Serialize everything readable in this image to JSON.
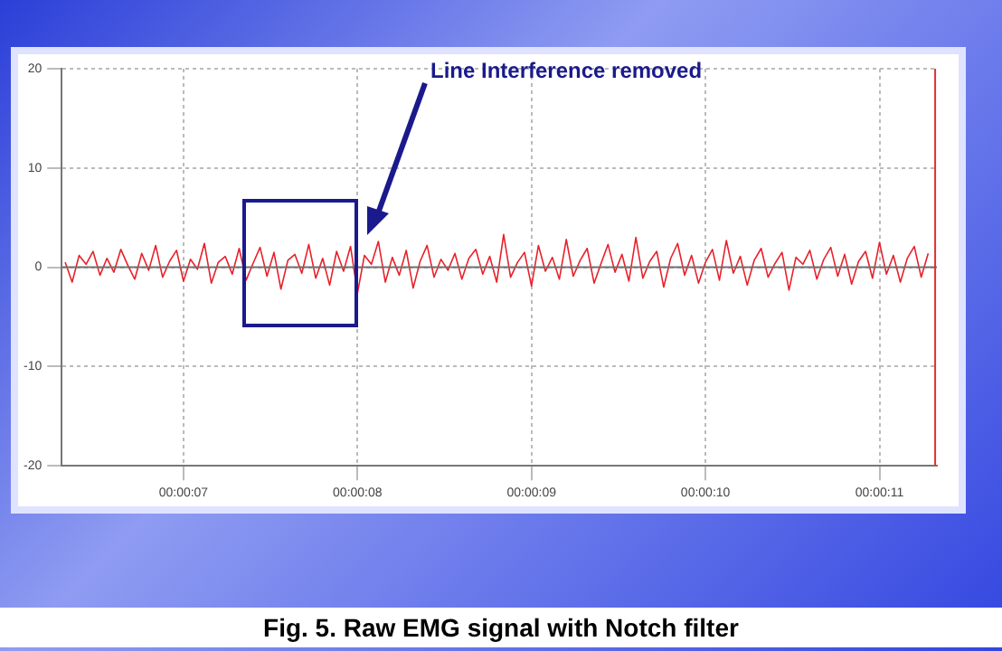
{
  "chart_data": {
    "type": "line",
    "title": "Fig. 5. Raw EMG signal with Notch filter",
    "annotations": [
      "Line Interference removed"
    ],
    "xlim": [
      6.3,
      11.33
    ],
    "xticks": [
      {
        "value": 7,
        "label": "00:00:07"
      },
      {
        "value": 8,
        "label": "00:00:08"
      },
      {
        "value": 9,
        "label": "00:00:09"
      },
      {
        "value": 10,
        "label": "00:00:10"
      },
      {
        "value": 11,
        "label": "00:00:11"
      }
    ],
    "ylim": [
      -20,
      20
    ],
    "yticks": [
      -20,
      -10,
      0,
      10,
      20
    ],
    "grid": true,
    "marker": "none",
    "line_style": "solid",
    "ref_lines": [
      {
        "axis": "y",
        "value": 0,
        "color": "#707070"
      },
      {
        "axis": "x",
        "value": 11.32,
        "color": "#e03030"
      }
    ],
    "series": [
      {
        "color": "#e8202a",
        "x": [
          6.32,
          6.36,
          6.4,
          6.44,
          6.48,
          6.52,
          6.56,
          6.6,
          6.64,
          6.68,
          6.72,
          6.76,
          6.8,
          6.84,
          6.88,
          6.92,
          6.96,
          7.0,
          7.04,
          7.08,
          7.12,
          7.16,
          7.2,
          7.24,
          7.28,
          7.32,
          7.36,
          7.4,
          7.44,
          7.48,
          7.52,
          7.56,
          7.6,
          7.64,
          7.68,
          7.72,
          7.76,
          7.8,
          7.84,
          7.88,
          7.92,
          7.96,
          8.0,
          8.04,
          8.08,
          8.12,
          8.16,
          8.2,
          8.24,
          8.28,
          8.32,
          8.36,
          8.4,
          8.44,
          8.48,
          8.52,
          8.56,
          8.6,
          8.64,
          8.68,
          8.72,
          8.76,
          8.8,
          8.84,
          8.88,
          8.92,
          8.96,
          9.0,
          9.04,
          9.08,
          9.12,
          9.16,
          9.2,
          9.24,
          9.28,
          9.32,
          9.36,
          9.4,
          9.44,
          9.48,
          9.52,
          9.56,
          9.6,
          9.64,
          9.68,
          9.72,
          9.76,
          9.8,
          9.84,
          9.88,
          9.92,
          9.96,
          10.0,
          10.04,
          10.08,
          10.12,
          10.16,
          10.2,
          10.24,
          10.28,
          10.32,
          10.36,
          10.4,
          10.44,
          10.48,
          10.52,
          10.56,
          10.6,
          10.64,
          10.68,
          10.72,
          10.76,
          10.8,
          10.84,
          10.88,
          10.92,
          10.96,
          11.0,
          11.04,
          11.08,
          11.12,
          11.16,
          11.2,
          11.24,
          11.28
        ],
        "values": [
          0.5,
          -1.5,
          1.2,
          0.3,
          1.6,
          -0.8,
          0.9,
          -0.5,
          1.8,
          0.2,
          -1.2,
          1.4,
          -0.3,
          2.2,
          -1.0,
          0.6,
          1.7,
          -1.4,
          0.8,
          -0.2,
          2.4,
          -1.6,
          0.5,
          1.1,
          -0.7,
          1.9,
          -1.3,
          0.4,
          2.0,
          -0.9,
          1.5,
          -2.2,
          0.7,
          1.3,
          -0.6,
          2.3,
          -1.1,
          0.9,
          -1.8,
          1.6,
          -0.4,
          2.1,
          -2.6,
          1.2,
          0.3,
          2.6,
          -1.5,
          1.0,
          -0.8,
          1.7,
          -2.1,
          0.6,
          2.2,
          -1.0,
          0.8,
          -0.3,
          1.4,
          -1.2,
          0.9,
          1.8,
          -0.7,
          1.1,
          -1.5,
          3.3,
          -1.0,
          0.5,
          1.5,
          -1.9,
          2.2,
          -0.4,
          1.0,
          -1.2,
          2.8,
          -0.9,
          0.7,
          1.9,
          -1.6,
          0.4,
          2.3,
          -0.5,
          1.3,
          -1.4,
          3.0,
          -1.1,
          0.6,
          1.6,
          -2.0,
          0.9,
          2.4,
          -0.8,
          1.2,
          -1.6,
          0.5,
          1.8,
          -1.3,
          2.7,
          -0.6,
          1.1,
          -1.8,
          0.7,
          1.9,
          -1.0,
          0.4,
          1.5,
          -2.3,
          1.0,
          0.3,
          1.7,
          -1.2,
          0.8,
          2.0,
          -0.9,
          1.3,
          -1.7,
          0.6,
          1.6,
          -1.1,
          2.5,
          -0.7,
          1.2,
          -1.5,
          0.9,
          2.1,
          -1.0,
          1.4
        ]
      }
    ]
  }
}
